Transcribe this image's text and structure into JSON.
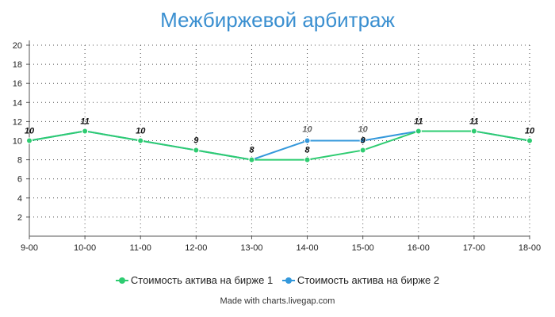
{
  "chart_data": {
    "type": "line",
    "title": "Межбиржевой арбитраж",
    "categories": [
      "9-00",
      "10-00",
      "11-00",
      "12-00",
      "13-00",
      "14-00",
      "15-00",
      "16-00",
      "17-00",
      "18-00"
    ],
    "ylim": [
      0,
      20
    ],
    "yticks": [
      2,
      4,
      6,
      8,
      10,
      12,
      14,
      16,
      18,
      20
    ],
    "grid": true,
    "legend_position": "bottom",
    "series": [
      {
        "name": "Стоимость актива на бирже 1",
        "color": "#2ecc71",
        "values": [
          10,
          11,
          10,
          9,
          8,
          8,
          9,
          11,
          11,
          10
        ],
        "labels": [
          "10",
          "11",
          "10",
          "9",
          "8",
          "8",
          "9",
          "11",
          "11",
          "10"
        ]
      },
      {
        "name": "Стоимость актива на бирже 2",
        "color": "#3498db",
        "values": [
          10,
          11,
          10,
          9,
          8,
          10,
          10,
          11,
          11,
          10
        ],
        "labels": [
          "",
          "",
          "",
          "",
          "",
          "10",
          "10",
          "",
          "",
          ""
        ]
      }
    ]
  },
  "footer": {
    "credit": "Made with charts.livegap.com"
  }
}
